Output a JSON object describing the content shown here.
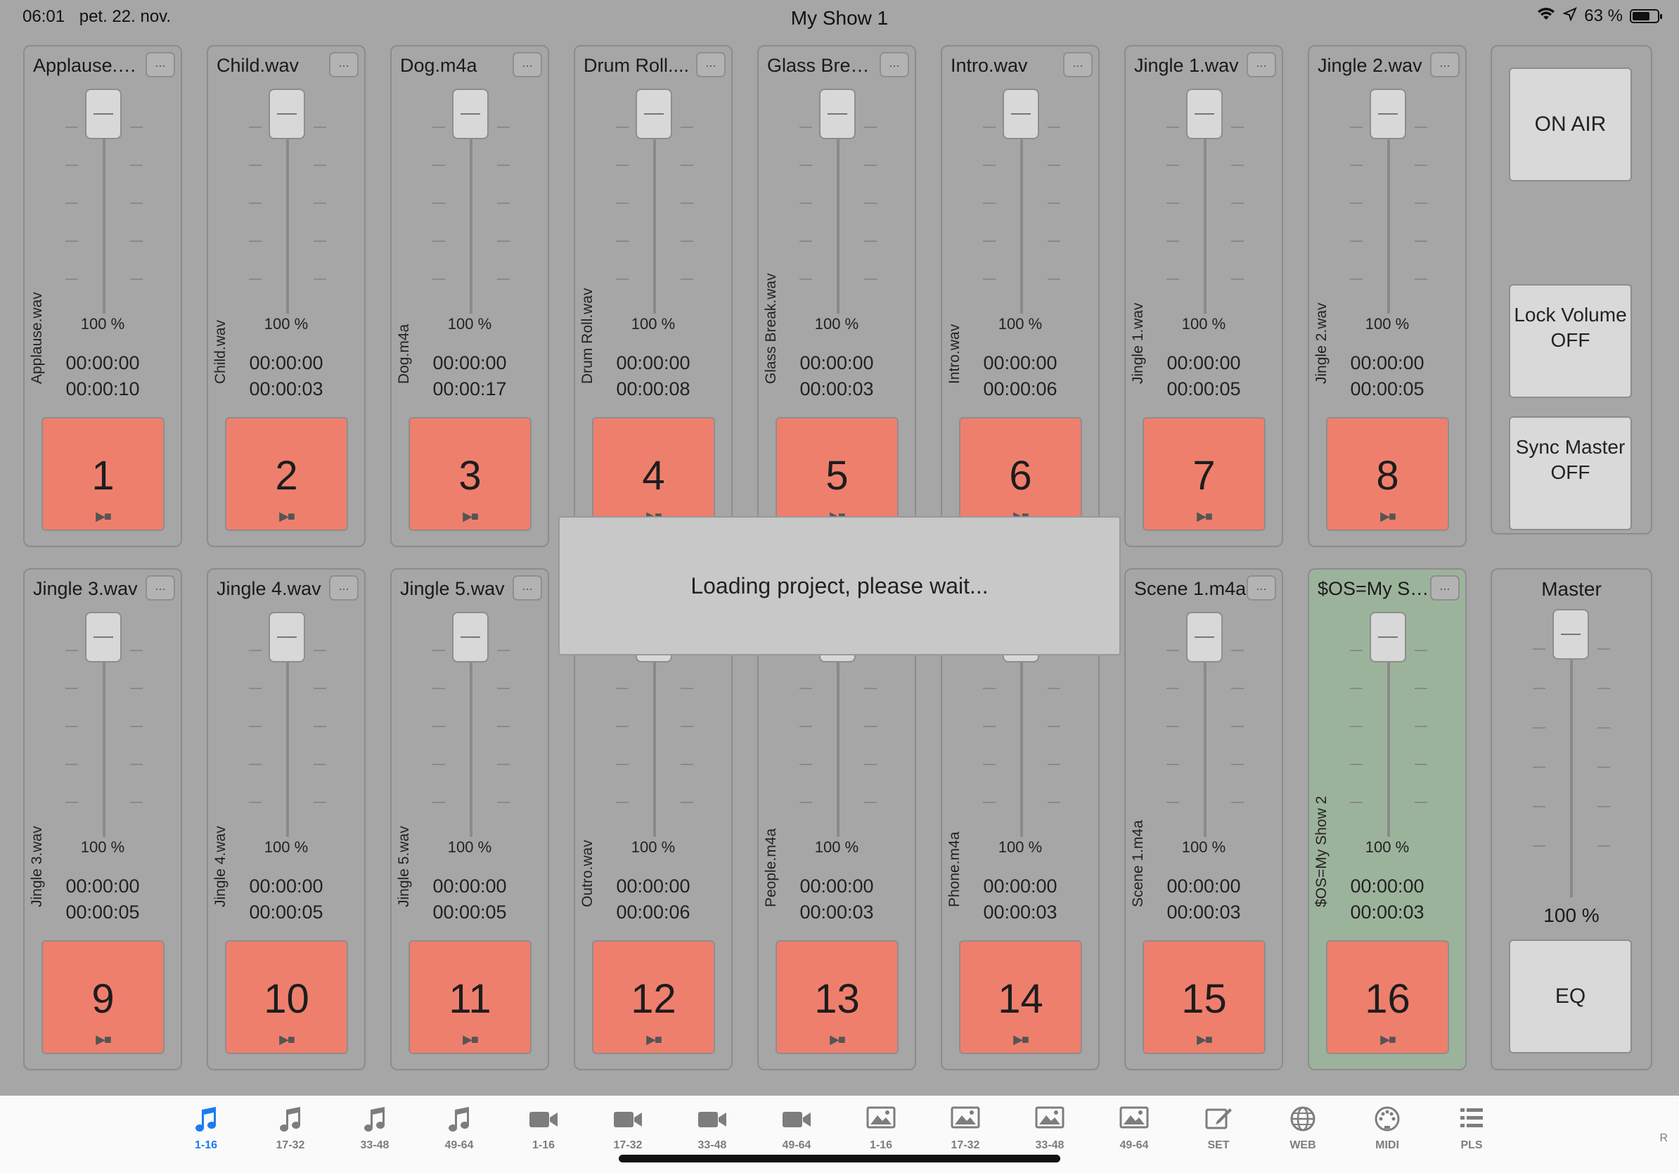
{
  "status_bar": {
    "time": "06:01",
    "date": "pet. 22. nov.",
    "title": "My Show 1",
    "battery": "63 %"
  },
  "channels": [
    {
      "name": "Applause.w...",
      "vlabel": "Applause.wav",
      "pct": "100 %",
      "t1": "00:00:00",
      "t2": "00:00:10",
      "num": "1",
      "menu": "..."
    },
    {
      "name": "Child.wav",
      "vlabel": "Child.wav",
      "pct": "100 %",
      "t1": "00:00:00",
      "t2": "00:00:03",
      "num": "2",
      "menu": "..."
    },
    {
      "name": "Dog.m4a",
      "vlabel": "Dog.m4a",
      "pct": "100 %",
      "t1": "00:00:00",
      "t2": "00:00:17",
      "num": "3",
      "menu": "..."
    },
    {
      "name": "Drum Roll....",
      "vlabel": "Drum Roll.wav",
      "pct": "100 %",
      "t1": "00:00:00",
      "t2": "00:00:08",
      "num": "4",
      "menu": "..."
    },
    {
      "name": "Glass Break...",
      "vlabel": "Glass Break.wav",
      "pct": "100 %",
      "t1": "00:00:00",
      "t2": "00:00:03",
      "num": "5",
      "menu": "..."
    },
    {
      "name": "Intro.wav",
      "vlabel": "Intro.wav",
      "pct": "100 %",
      "t1": "00:00:00",
      "t2": "00:00:06",
      "num": "6",
      "menu": "..."
    },
    {
      "name": "Jingle 1.wav",
      "vlabel": "Jingle 1.wav",
      "pct": "100 %",
      "t1": "00:00:00",
      "t2": "00:00:05",
      "num": "7",
      "menu": "..."
    },
    {
      "name": "Jingle 2.wav",
      "vlabel": "Jingle 2.wav",
      "pct": "100 %",
      "t1": "00:00:00",
      "t2": "00:00:05",
      "num": "8",
      "menu": "..."
    },
    {
      "name": "Jingle 3.wav",
      "vlabel": "Jingle 3.wav",
      "pct": "100 %",
      "t1": "00:00:00",
      "t2": "00:00:05",
      "num": "9",
      "menu": "..."
    },
    {
      "name": "Jingle 4.wav",
      "vlabel": "Jingle 4.wav",
      "pct": "100 %",
      "t1": "00:00:00",
      "t2": "00:00:05",
      "num": "10",
      "menu": "..."
    },
    {
      "name": "Jingle 5.wav",
      "vlabel": "Jingle 5.wav",
      "pct": "100 %",
      "t1": "00:00:00",
      "t2": "00:00:05",
      "num": "11",
      "menu": "..."
    },
    {
      "name": "",
      "vlabel": "Outro.wav",
      "pct": "100 %",
      "t1": "00:00:00",
      "t2": "00:00:06",
      "num": "12",
      "menu": "..."
    },
    {
      "name": "",
      "vlabel": "People.m4a",
      "pct": "100 %",
      "t1": "00:00:00",
      "t2": "00:00:03",
      "num": "13",
      "menu": "..."
    },
    {
      "name": "",
      "vlabel": "Phone.m4a",
      "pct": "100 %",
      "t1": "00:00:00",
      "t2": "00:00:03",
      "num": "14",
      "menu": "..."
    },
    {
      "name": "Scene 1.m4a",
      "vlabel": "Scene 1.m4a",
      "pct": "100 %",
      "t1": "00:00:00",
      "t2": "00:00:03",
      "num": "15",
      "menu": "..."
    },
    {
      "name": "$OS=My Sh...",
      "vlabel": "$OS=My Show 2",
      "pct": "100 %",
      "t1": "00:00:00",
      "t2": "00:00:03",
      "num": "16",
      "menu": "...",
      "highlight": "#9cb39b"
    }
  ],
  "controls": {
    "on_air": "ON AIR",
    "lock_volume": "Lock Volume OFF",
    "sync_master": "Sync Master OFF"
  },
  "master": {
    "title": "Master",
    "pct": "100 %",
    "eq": "EQ"
  },
  "overlay": {
    "message": "Loading project, please wait..."
  },
  "tabs": [
    {
      "icon": "music-note-icon",
      "label": "1-16",
      "active": true
    },
    {
      "icon": "music-note-icon",
      "label": "17-32"
    },
    {
      "icon": "music-note-icon",
      "label": "33-48"
    },
    {
      "icon": "music-note-icon",
      "label": "49-64"
    },
    {
      "icon": "video-camera-icon",
      "label": "1-16"
    },
    {
      "icon": "video-camera-icon",
      "label": "17-32"
    },
    {
      "icon": "video-camera-icon",
      "label": "33-48"
    },
    {
      "icon": "video-camera-icon",
      "label": "49-64"
    },
    {
      "icon": "image-icon",
      "label": "1-16"
    },
    {
      "icon": "image-icon",
      "label": "17-32"
    },
    {
      "icon": "image-icon",
      "label": "33-48"
    },
    {
      "icon": "image-icon",
      "label": "49-64"
    },
    {
      "icon": "edit-icon",
      "label": "SET"
    },
    {
      "icon": "globe-icon",
      "label": "WEB"
    },
    {
      "icon": "midi-icon",
      "label": "MIDI"
    },
    {
      "icon": "list-icon",
      "label": "PLS"
    }
  ],
  "tab_extra": "R",
  "colors": {
    "pad": "#ef7f6d",
    "highlight": "#9cb39b",
    "active_tab": "#1a7cf0",
    "background": "#a6a6a6"
  }
}
